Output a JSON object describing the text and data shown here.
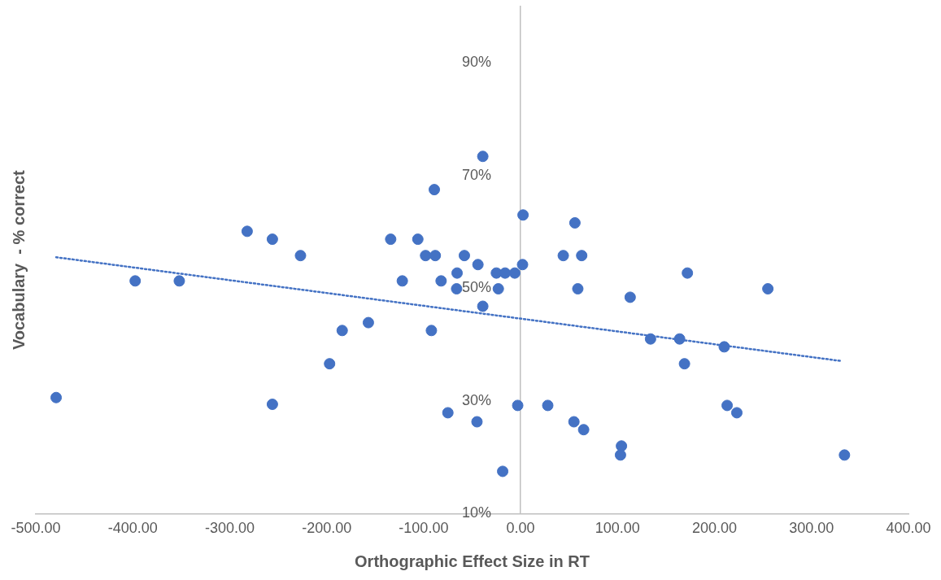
{
  "chart_data": {
    "type": "scatter",
    "xlabel": "Orthographic Effect Size in RT",
    "ylabel": "Vocabulary  - % correct",
    "xlim": [
      -500,
      400
    ],
    "xticks": [
      {
        "value": -500,
        "label": "-500.00"
      },
      {
        "value": -400,
        "label": "-400.00"
      },
      {
        "value": -300,
        "label": "-300.00"
      },
      {
        "value": -200,
        "label": "-200.00"
      },
      {
        "value": -100,
        "label": "-100.00"
      },
      {
        "value": 0,
        "label": "0.00"
      },
      {
        "value": 100,
        "label": "100.00"
      },
      {
        "value": 200,
        "label": "200.00"
      },
      {
        "value": 300,
        "label": "300.00"
      },
      {
        "value": 400,
        "label": "400.00"
      }
    ],
    "ylim": [
      10,
      100
    ],
    "yticks": [
      {
        "value": 10,
        "label": "10%"
      },
      {
        "value": 30,
        "label": "30%"
      },
      {
        "value": 50,
        "label": "50%"
      },
      {
        "value": 70,
        "label": "70%"
      },
      {
        "value": 90,
        "label": "90%"
      }
    ],
    "series": [
      {
        "type": "scatter",
        "color": "#4472c4",
        "marker": "circle",
        "x": [
          -479,
          -397.5,
          -352,
          -282,
          -256,
          -256,
          -227,
          -197,
          -184,
          -157,
          -134,
          -122,
          -106,
          -98,
          -88,
          -89,
          -92,
          -82,
          -75,
          -65.5,
          -66,
          -58,
          -44,
          -45,
          -39,
          -39,
          -25,
          -23,
          -18.5,
          -16,
          -6,
          -3,
          2,
          2.5,
          28,
          44,
          55,
          56,
          59,
          63,
          65,
          104,
          103,
          113,
          134,
          164,
          169,
          172,
          210,
          213,
          223,
          255,
          334
        ],
        "values": [
          30.6,
          51.3,
          51.3,
          60.1,
          58.7,
          29.4,
          55.8,
          36.6,
          42.5,
          43.9,
          58.7,
          51.3,
          58.7,
          55.8,
          55.8,
          67.5,
          42.5,
          51.3,
          27.9,
          52.7,
          49.9,
          55.8,
          54.2,
          26.3,
          73.4,
          46.8,
          52.7,
          49.9,
          17.5,
          52.7,
          52.7,
          29.2,
          54.2,
          63.0,
          29.2,
          55.8,
          26.3,
          61.6,
          49.9,
          55.8,
          24.9,
          22.0,
          20.4,
          48.4,
          41.0,
          41.0,
          36.6,
          52.7,
          39.6,
          29.2,
          27.9,
          49.9,
          20.4
        ]
      },
      {
        "type": "line",
        "color": "#4472c4",
        "marker": "none",
        "line_style": "dotted",
        "x": [
          -479,
          330
        ],
        "values": [
          55.5,
          37.1
        ]
      }
    ]
  }
}
